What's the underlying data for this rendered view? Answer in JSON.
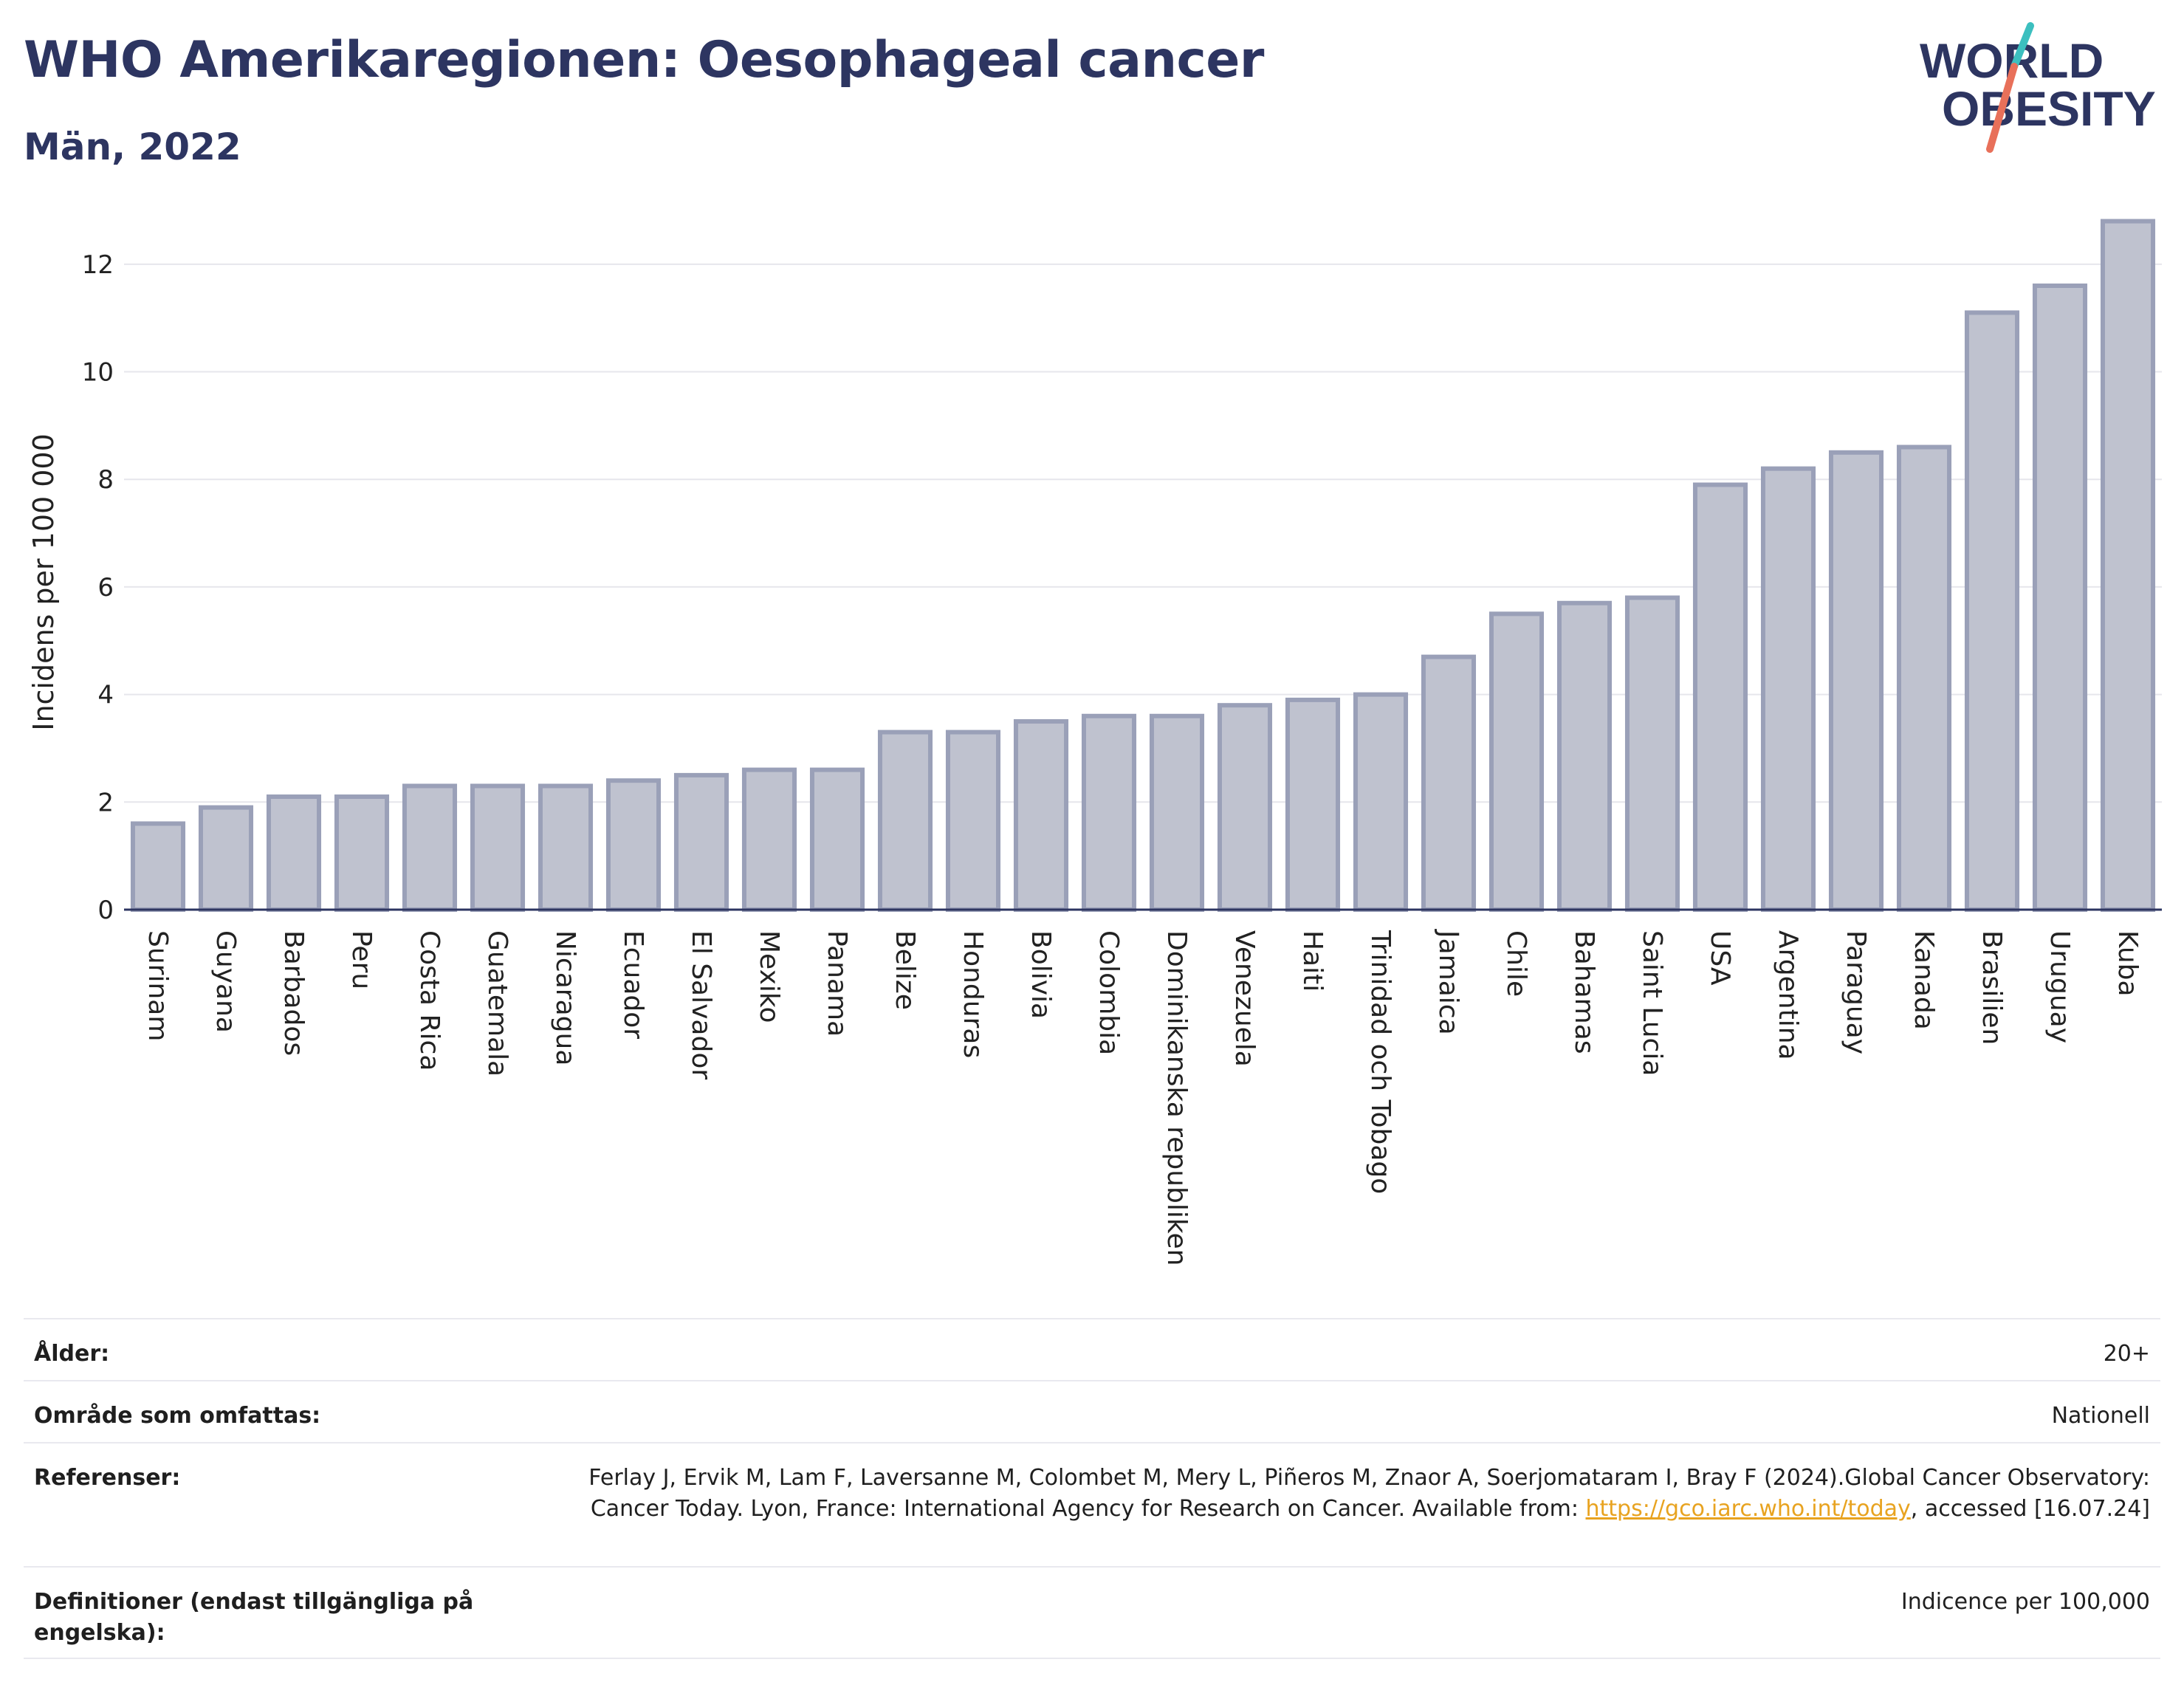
{
  "title": "WHO Amerikaregionen: Oesophageal cancer",
  "subtitle": "Män, 2022",
  "logo": {
    "line1": "WORLD",
    "line2": "OBESITY",
    "colors": {
      "text": "#2d3561",
      "slash_top": "#3cbfbf",
      "slash_bottom": "#e8705a"
    }
  },
  "chart_data": {
    "type": "bar",
    "title": "WHO Amerikaregionen: Oesophageal cancer",
    "subtitle": "Män, 2022",
    "xlabel": "",
    "ylabel": "Incidens per 100 000",
    "ylim": [
      0,
      13
    ],
    "yticks": [
      0,
      2,
      4,
      6,
      8,
      10,
      12
    ],
    "grid": true,
    "bar_color": "#bfc2cf",
    "bar_edge_color": "#9aa0b8",
    "categories": [
      "Surinam",
      "Guyana",
      "Barbados",
      "Peru",
      "Costa Rica",
      "Guatemala",
      "Nicaragua",
      "Ecuador",
      "El Salvador",
      "Mexiko",
      "Panama",
      "Belize",
      "Honduras",
      "Bolivia",
      "Colombia",
      "Dominikanska republiken",
      "Venezuela",
      "Haiti",
      "Trinidad och Tobago",
      "Jamaica",
      "Chile",
      "Bahamas",
      "Saint Lucia",
      "USA",
      "Argentina",
      "Paraguay",
      "Kanada",
      "Brasilien",
      "Uruguay",
      "Kuba"
    ],
    "values": [
      1.6,
      1.9,
      2.1,
      2.1,
      2.3,
      2.3,
      2.3,
      2.4,
      2.5,
      2.6,
      2.6,
      3.3,
      3.3,
      3.5,
      3.6,
      3.6,
      3.8,
      3.9,
      4.0,
      4.7,
      5.5,
      5.7,
      5.8,
      7.9,
      8.2,
      8.5,
      8.6,
      11.1,
      11.6,
      12.8
    ]
  },
  "info": {
    "age_label": "Ålder:",
    "age_value": "20+",
    "area_label": "Område som omfattas:",
    "area_value": "Nationell",
    "refs_label": "Referenser:",
    "refs_text_1": "Ferlay J, Ervik M, Lam F, Laversanne M, Colombet M, Mery L, Piñeros M, Znaor A, Soerjomataram I, Bray F (2024).Global Cancer Observatory: Cancer Today. Lyon, France: International Agency for Research on Cancer. Available from: ",
    "refs_link": "https://gco.iarc.who.int/today",
    "refs_text_2": ", accessed [16.07.24]",
    "defs_label": "Definitioner (endast tillgängliga på engelska):",
    "defs_value": "Indicence per 100,000"
  }
}
